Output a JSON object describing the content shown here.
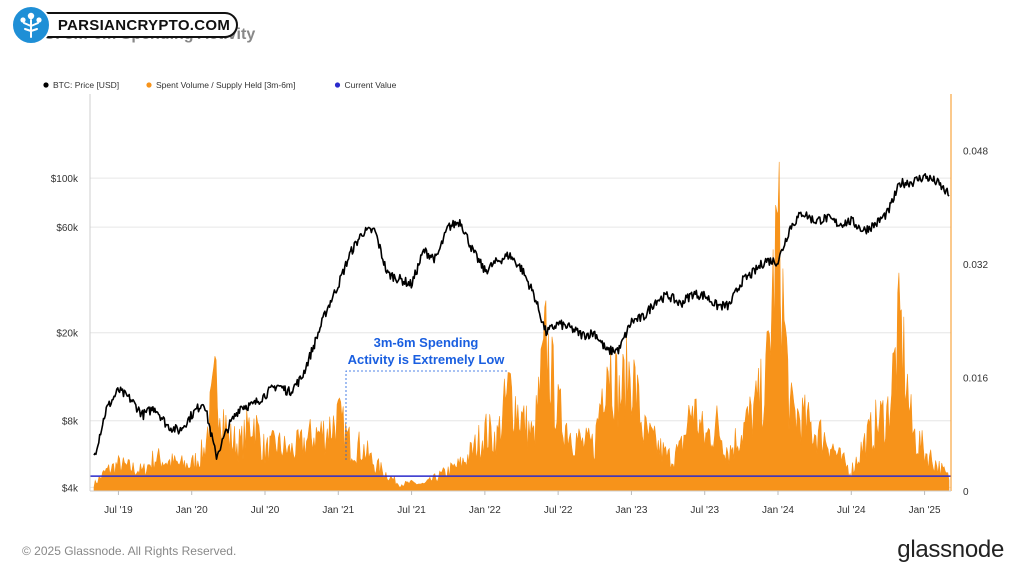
{
  "brand_watermark": {
    "text": "PARSIANCRYPTO.COM",
    "icon": "tree-people-icon",
    "icon_color": "#1f8fd6"
  },
  "title": "BTC: 3m-6m Spending Activity",
  "footer": {
    "copyright": "© 2025 Glassnode. All Rights Reserved.",
    "brand": "glassnode"
  },
  "chart_data": {
    "type": "line",
    "legend_position": "top-left",
    "legend": [
      {
        "label": "BTC: Price [USD]",
        "color": "#000000"
      },
      {
        "label": "Spent Volume / Supply Held [3m-6m]",
        "color": "#f7931a"
      },
      {
        "label": "Current Value",
        "color": "#2a2acc"
      }
    ],
    "x_axis": {
      "ticks": [
        "Jul '19",
        "Jan '20",
        "Jul '20",
        "Jan '21",
        "Jul '21",
        "Jan '22",
        "Jul '22",
        "Jan '23",
        "Jul '23",
        "Jan '24",
        "Jul '24",
        "Jan '25"
      ],
      "range": [
        "2019-05",
        "2025-03"
      ]
    },
    "y_left": {
      "scale": "log",
      "ticks": [
        "$4k",
        "$8k",
        "$20k",
        "$60k",
        "$100k"
      ],
      "tick_values": [
        4000,
        8000,
        20000,
        60000,
        100000
      ]
    },
    "y_right": {
      "ticks": [
        "0",
        "0.016",
        "0.032",
        "0.048"
      ],
      "tick_values": [
        0,
        0.016,
        0.032,
        0.048
      ],
      "range": [
        0,
        0.056
      ]
    },
    "annotation": {
      "lines": [
        "3m-6m Spending",
        "Activity is Extremely Low"
      ],
      "color": "#1a5fe0"
    },
    "current_value": 0.0021,
    "series": [
      {
        "name": "BTC: Price [USD]",
        "color": "#000000",
        "points": [
          [
            "2019-05",
            5500
          ],
          [
            "2019-06",
            9000
          ],
          [
            "2019-07",
            11000
          ],
          [
            "2019-08",
            10000
          ],
          [
            "2019-09",
            8500
          ],
          [
            "2019-10",
            9200
          ],
          [
            "2019-11",
            7600
          ],
          [
            "2019-12",
            7200
          ],
          [
            "2020-01",
            8500
          ],
          [
            "2020-02",
            9800
          ],
          [
            "2020-03",
            5500
          ],
          [
            "2020-04",
            7500
          ],
          [
            "2020-05",
            9300
          ],
          [
            "2020-06",
            9400
          ],
          [
            "2020-07",
            10500
          ],
          [
            "2020-08",
            11600
          ],
          [
            "2020-09",
            10800
          ],
          [
            "2020-10",
            12500
          ],
          [
            "2020-11",
            17500
          ],
          [
            "2020-12",
            25000
          ],
          [
            "2021-01",
            33000
          ],
          [
            "2021-02",
            46000
          ],
          [
            "2021-03",
            57000
          ],
          [
            "2021-04",
            58000
          ],
          [
            "2021-05",
            37000
          ],
          [
            "2021-06",
            35000
          ],
          [
            "2021-07",
            33000
          ],
          [
            "2021-08",
            47000
          ],
          [
            "2021-09",
            43000
          ],
          [
            "2021-10",
            60000
          ],
          [
            "2021-11",
            64000
          ],
          [
            "2021-12",
            47000
          ],
          [
            "2022-01",
            38000
          ],
          [
            "2022-02",
            42000
          ],
          [
            "2022-03",
            45000
          ],
          [
            "2022-04",
            39000
          ],
          [
            "2022-05",
            30000
          ],
          [
            "2022-06",
            20000
          ],
          [
            "2022-07",
            22000
          ],
          [
            "2022-08",
            21000
          ],
          [
            "2022-09",
            19500
          ],
          [
            "2022-10",
            20000
          ],
          [
            "2022-11",
            16500
          ],
          [
            "2022-12",
            16800
          ],
          [
            "2023-01",
            22500
          ],
          [
            "2023-02",
            23500
          ],
          [
            "2023-03",
            28000
          ],
          [
            "2023-04",
            29500
          ],
          [
            "2023-05",
            27000
          ],
          [
            "2023-06",
            30000
          ],
          [
            "2023-07",
            29500
          ],
          [
            "2023-08",
            26500
          ],
          [
            "2023-09",
            26500
          ],
          [
            "2023-10",
            34000
          ],
          [
            "2023-11",
            37500
          ],
          [
            "2023-12",
            42500
          ],
          [
            "2024-01",
            42000
          ],
          [
            "2024-02",
            60000
          ],
          [
            "2024-03",
            70000
          ],
          [
            "2024-04",
            64000
          ],
          [
            "2024-05",
            66000
          ],
          [
            "2024-06",
            62000
          ],
          [
            "2024-07",
            64000
          ],
          [
            "2024-08",
            58000
          ],
          [
            "2024-09",
            62000
          ],
          [
            "2024-10",
            70000
          ],
          [
            "2024-11",
            95000
          ],
          [
            "2024-12",
            96000
          ],
          [
            "2025-01",
            102000
          ],
          [
            "2025-02",
            96000
          ],
          [
            "2025-03",
            84000
          ]
        ]
      },
      {
        "name": "Spent Volume / Supply Held [3m-6m]",
        "color": "#f7931a",
        "points": [
          [
            "2019-05",
            0.001
          ],
          [
            "2019-06",
            0.003
          ],
          [
            "2019-07",
            0.004
          ],
          [
            "2019-08",
            0.0035
          ],
          [
            "2019-09",
            0.003
          ],
          [
            "2019-10",
            0.005
          ],
          [
            "2019-11",
            0.0045
          ],
          [
            "2019-12",
            0.004
          ],
          [
            "2020-01",
            0.004
          ],
          [
            "2020-02",
            0.006
          ],
          [
            "2020-03",
            0.0165
          ],
          [
            "2020-04",
            0.008
          ],
          [
            "2020-05",
            0.007
          ],
          [
            "2020-06",
            0.011
          ],
          [
            "2020-07",
            0.006
          ],
          [
            "2020-08",
            0.007
          ],
          [
            "2020-09",
            0.006
          ],
          [
            "2020-10",
            0.007
          ],
          [
            "2020-11",
            0.0085
          ],
          [
            "2020-12",
            0.009
          ],
          [
            "2021-01",
            0.011
          ],
          [
            "2021-02",
            0.007
          ],
          [
            "2021-03",
            0.0065
          ],
          [
            "2021-04",
            0.004
          ],
          [
            "2021-05",
            0.0025
          ],
          [
            "2021-06",
            0.001
          ],
          [
            "2021-07",
            0.0012
          ],
          [
            "2021-08",
            0.001
          ],
          [
            "2021-09",
            0.002
          ],
          [
            "2021-10",
            0.003
          ],
          [
            "2021-11",
            0.004
          ],
          [
            "2021-12",
            0.006
          ],
          [
            "2022-01",
            0.009
          ],
          [
            "2022-02",
            0.008
          ],
          [
            "2022-03",
            0.0155
          ],
          [
            "2022-04",
            0.011
          ],
          [
            "2022-05",
            0.008
          ],
          [
            "2022-06",
            0.0225
          ],
          [
            "2022-07",
            0.012
          ],
          [
            "2022-08",
            0.009
          ],
          [
            "2022-09",
            0.007
          ],
          [
            "2022-10",
            0.007
          ],
          [
            "2022-11",
            0.0215
          ],
          [
            "2022-12",
            0.0145
          ],
          [
            "2023-01",
            0.0185
          ],
          [
            "2023-02",
            0.009
          ],
          [
            "2023-03",
            0.007
          ],
          [
            "2023-04",
            0.005
          ],
          [
            "2023-05",
            0.006
          ],
          [
            "2023-06",
            0.013
          ],
          [
            "2023-07",
            0.008
          ],
          [
            "2023-08",
            0.01
          ],
          [
            "2023-09",
            0.006
          ],
          [
            "2023-10",
            0.009
          ],
          [
            "2023-11",
            0.012
          ],
          [
            "2023-12",
            0.016
          ],
          [
            "2024-01",
            0.0395
          ],
          [
            "2024-02",
            0.012
          ],
          [
            "2024-03",
            0.011
          ],
          [
            "2024-04",
            0.009
          ],
          [
            "2024-05",
            0.008
          ],
          [
            "2024-06",
            0.005
          ],
          [
            "2024-07",
            0.003
          ],
          [
            "2024-08",
            0.007
          ],
          [
            "2024-09",
            0.01
          ],
          [
            "2024-10",
            0.012
          ],
          [
            "2024-11",
            0.025
          ],
          [
            "2024-12",
            0.009
          ],
          [
            "2025-01",
            0.006
          ],
          [
            "2025-02",
            0.004
          ],
          [
            "2025-03",
            0.002
          ]
        ]
      }
    ]
  }
}
